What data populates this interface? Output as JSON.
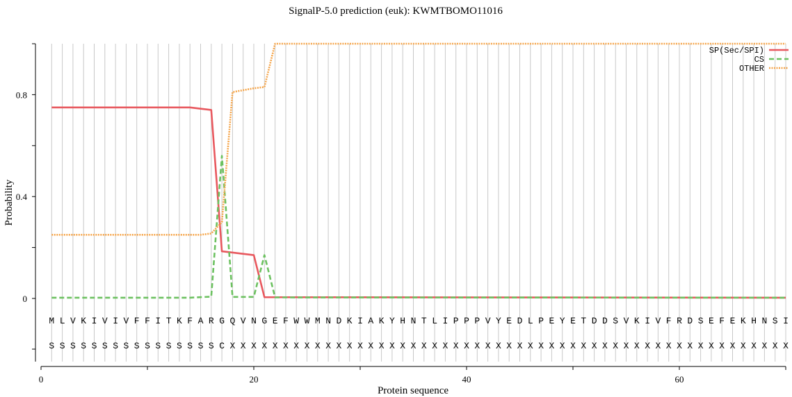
{
  "chart_data": {
    "type": "line",
    "title": "SignalP-5.0 prediction (euk):  KWMTBOMO11016",
    "xlabel": "Protein sequence",
    "ylabel": "Probability",
    "xlim": [
      0,
      70
    ],
    "ylim": [
      0,
      1
    ],
    "x_ticks": [
      0,
      20,
      40,
      60
    ],
    "x_tick_labels": [
      "0",
      "20",
      "40",
      "60"
    ],
    "y_ticks": [
      0,
      0.4,
      0.8
    ],
    "y_tick_labels": [
      "0",
      "0.4",
      "0.8"
    ],
    "grid": "vertical line at each residue",
    "legend_position": "top-right",
    "sequence": "MLVKIVIVFFITKFARGQVNGEFWWMNDKIAKYHNTLIPPPVYEDLPEYETDDSVKIVFRDSEFEKHNSI",
    "annotation": "SSSSSSSSSSSSSSSSCXXXXXXXXXXXXXXXXXXXXXXXXXXXXXXXXXXXXXXXXXXXXXXXXXXXXX",
    "series": [
      {
        "name": "SP(Sec/SPI)",
        "color": "#e8585e",
        "style": "solid",
        "x": [
          1,
          14,
          16,
          17,
          20,
          21,
          70
        ],
        "y": [
          0.75,
          0.75,
          0.74,
          0.185,
          0.17,
          0.005,
          0.003
        ]
      },
      {
        "name": "CS",
        "color": "#6cc160",
        "style": "dashed",
        "x": [
          1,
          14,
          16,
          17,
          18,
          20,
          21,
          22,
          70
        ],
        "y": [
          0.003,
          0.003,
          0.007,
          0.56,
          0.006,
          0.006,
          0.17,
          0.004,
          0.003
        ]
      },
      {
        "name": "OTHER",
        "color": "#f5a54a",
        "style": "dotted",
        "x": [
          1,
          15,
          16,
          17,
          18,
          20,
          21,
          22,
          70
        ],
        "y": [
          0.25,
          0.25,
          0.255,
          0.3,
          0.81,
          0.825,
          0.83,
          1.0,
          1.0
        ]
      }
    ]
  }
}
